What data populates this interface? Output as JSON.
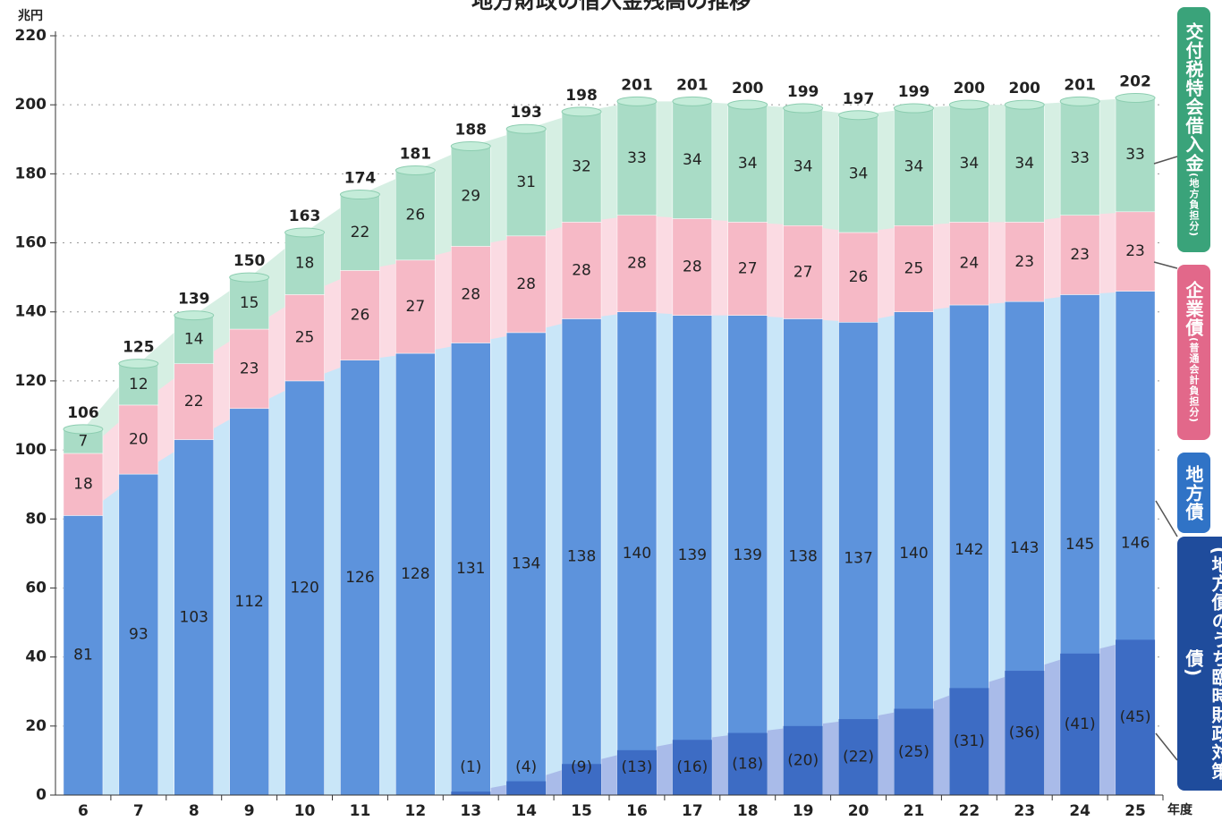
{
  "chart_data": {
    "type": "bar",
    "title": "地方財政の借入金残高の推移",
    "y_unit": "兆円",
    "x_unit": "年度",
    "categories": [
      "6",
      "7",
      "8",
      "9",
      "10",
      "11",
      "12",
      "13",
      "14",
      "15",
      "16",
      "17",
      "18",
      "19",
      "20",
      "21",
      "22",
      "23",
      "24",
      "25"
    ],
    "series": [
      {
        "name": "地方債",
        "color": "#5d93dc",
        "band_color": "#c9e6f8",
        "values": [
          81,
          93,
          103,
          112,
          120,
          126,
          128,
          131,
          134,
          138,
          140,
          139,
          139,
          138,
          137,
          140,
          142,
          143,
          145,
          146
        ]
      },
      {
        "name": "企業債",
        "note": "(普通会計負担分)",
        "color": "#f6b9c6",
        "band_color": "#fbdbe3",
        "values": [
          18,
          20,
          22,
          23,
          25,
          26,
          27,
          28,
          28,
          28,
          28,
          28,
          27,
          27,
          26,
          25,
          24,
          23,
          23,
          23
        ]
      },
      {
        "name": "交付税特会借入金",
        "note": "(地方負担分)",
        "color": "#a9dcc6",
        "band_color": "#d6efe3",
        "values": [
          7,
          12,
          14,
          15,
          18,
          22,
          26,
          29,
          31,
          32,
          33,
          34,
          34,
          34,
          34,
          34,
          34,
          34,
          33,
          33
        ]
      }
    ],
    "subseries": {
      "name": "(地方債のうち臨時財政対策債)",
      "color": "#3d6cc4",
      "band_color": "#a9bbe9",
      "values": [
        null,
        null,
        null,
        null,
        null,
        null,
        null,
        1,
        4,
        9,
        13,
        16,
        18,
        20,
        22,
        25,
        31,
        36,
        41,
        45
      ],
      "value_labels": [
        null,
        null,
        null,
        null,
        null,
        null,
        null,
        "(1)",
        "(4)",
        "(9)",
        "(13)",
        "(16)",
        "(18)",
        "(20)",
        "(22)",
        "(25)",
        "(31)",
        "(36)",
        "(41)",
        "(45)"
      ]
    },
    "totals": [
      106,
      125,
      139,
      150,
      163,
      174,
      181,
      188,
      193,
      198,
      201,
      201,
      200,
      199,
      197,
      199,
      200,
      200,
      201,
      202
    ],
    "ylim": [
      0,
      220
    ],
    "yticks": [
      0,
      20,
      40,
      60,
      80,
      100,
      120,
      140,
      160,
      180,
      200,
      220
    ],
    "grid": true
  }
}
